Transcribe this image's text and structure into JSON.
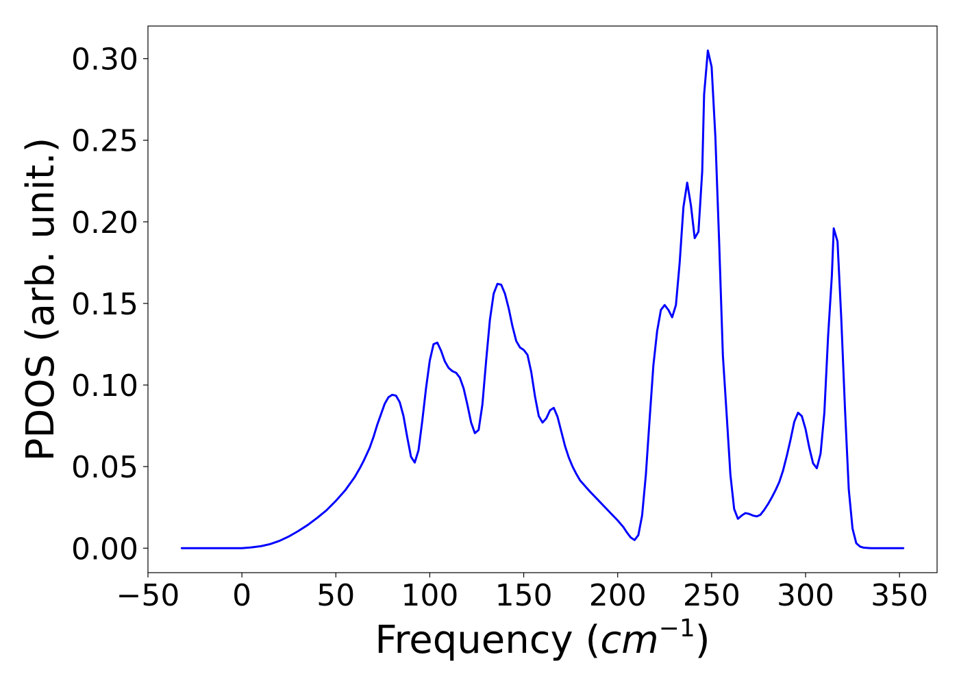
{
  "chart_data": {
    "type": "line",
    "xlabel": "Frequency",
    "xlabel_unit_open": " (",
    "xlabel_unit_base": "cm",
    "xlabel_unit_exp": "−1",
    "xlabel_unit_close": ")",
    "ylabel": "PDOS (arb. unit.)",
    "xlim": [
      -50,
      370
    ],
    "ylim": [
      -0.015,
      0.32
    ],
    "grid": false,
    "colors": {
      "line": "#0000ff",
      "axes": "#000000"
    },
    "x_ticks": [
      {
        "value": -50,
        "label": "−50"
      },
      {
        "value": 0,
        "label": "0"
      },
      {
        "value": 50,
        "label": "50"
      },
      {
        "value": 100,
        "label": "100"
      },
      {
        "value": 150,
        "label": "150"
      },
      {
        "value": 200,
        "label": "200"
      },
      {
        "value": 250,
        "label": "250"
      },
      {
        "value": 300,
        "label": "300"
      },
      {
        "value": 350,
        "label": "350"
      }
    ],
    "y_ticks": [
      {
        "value": 0.0,
        "label": "0.00"
      },
      {
        "value": 0.05,
        "label": "0.05"
      },
      {
        "value": 0.1,
        "label": "0.10"
      },
      {
        "value": 0.15,
        "label": "0.15"
      },
      {
        "value": 0.2,
        "label": "0.20"
      },
      {
        "value": 0.25,
        "label": "0.25"
      },
      {
        "value": 0.3,
        "label": "0.30"
      }
    ],
    "series": [
      {
        "x": [
          -32,
          -20,
          -10,
          0,
          5,
          10,
          15,
          20,
          25,
          30,
          35,
          40,
          45,
          50,
          55,
          60,
          63,
          65,
          68,
          70,
          72,
          74,
          76,
          78,
          80,
          82,
          84,
          86,
          88,
          90,
          92,
          94,
          96,
          98,
          100,
          102,
          104,
          106,
          108,
          110,
          112,
          114,
          116,
          118,
          120,
          122,
          124,
          126,
          128,
          130,
          132,
          134,
          136,
          138,
          140,
          142,
          144,
          146,
          148,
          150,
          152,
          154,
          156,
          158,
          160,
          162,
          164,
          166,
          168,
          170,
          172,
          174,
          176,
          178,
          180,
          185,
          190,
          195,
          200,
          203,
          205,
          207,
          209,
          211,
          213,
          215,
          217,
          219,
          221,
          223,
          225,
          227,
          229,
          231,
          233,
          235,
          237,
          239,
          241,
          243,
          245,
          246,
          248,
          250,
          252,
          254,
          256,
          258,
          260,
          262,
          264,
          266,
          268,
          270,
          272,
          274,
          276,
          278,
          280,
          282,
          284,
          286,
          288,
          290,
          292,
          294,
          296,
          298,
          300,
          302,
          304,
          306,
          308,
          310,
          312,
          314,
          315,
          317,
          319,
          321,
          323,
          325,
          327,
          329,
          331,
          335,
          340,
          352
        ],
        "values": [
          0.0,
          0.0,
          0.0,
          0.0,
          0.0005,
          0.0012,
          0.0025,
          0.0045,
          0.0072,
          0.0105,
          0.0142,
          0.0185,
          0.0232,
          0.029,
          0.0355,
          0.0435,
          0.0495,
          0.054,
          0.0615,
          0.068,
          0.0755,
          0.082,
          0.0885,
          0.0925,
          0.094,
          0.0935,
          0.0895,
          0.081,
          0.068,
          0.056,
          0.0525,
          0.06,
          0.078,
          0.098,
          0.115,
          0.125,
          0.126,
          0.121,
          0.1145,
          0.1105,
          0.1085,
          0.1075,
          0.1045,
          0.098,
          0.088,
          0.077,
          0.0705,
          0.0725,
          0.088,
          0.115,
          0.14,
          0.156,
          0.162,
          0.1615,
          0.156,
          0.147,
          0.136,
          0.127,
          0.123,
          0.1215,
          0.1185,
          0.108,
          0.093,
          0.081,
          0.077,
          0.0795,
          0.0845,
          0.086,
          0.0805,
          0.0715,
          0.0625,
          0.0555,
          0.05,
          0.0455,
          0.0415,
          0.035,
          0.029,
          0.023,
          0.017,
          0.013,
          0.0095,
          0.0065,
          0.005,
          0.008,
          0.02,
          0.045,
          0.079,
          0.112,
          0.133,
          0.146,
          0.149,
          0.146,
          0.1415,
          0.149,
          0.175,
          0.209,
          0.224,
          0.21,
          0.19,
          0.194,
          0.231,
          0.278,
          0.305,
          0.295,
          0.252,
          0.188,
          0.118,
          0.082,
          0.045,
          0.024,
          0.018,
          0.02,
          0.0215,
          0.021,
          0.02,
          0.0195,
          0.0205,
          0.0235,
          0.027,
          0.031,
          0.0355,
          0.0405,
          0.0475,
          0.0565,
          0.0665,
          0.0775,
          0.083,
          0.081,
          0.073,
          0.0615,
          0.052,
          0.049,
          0.058,
          0.083,
          0.13,
          0.167,
          0.196,
          0.188,
          0.141,
          0.085,
          0.036,
          0.012,
          0.003,
          0.001,
          0.0003,
          0.0,
          0.0,
          0.0
        ]
      }
    ]
  }
}
